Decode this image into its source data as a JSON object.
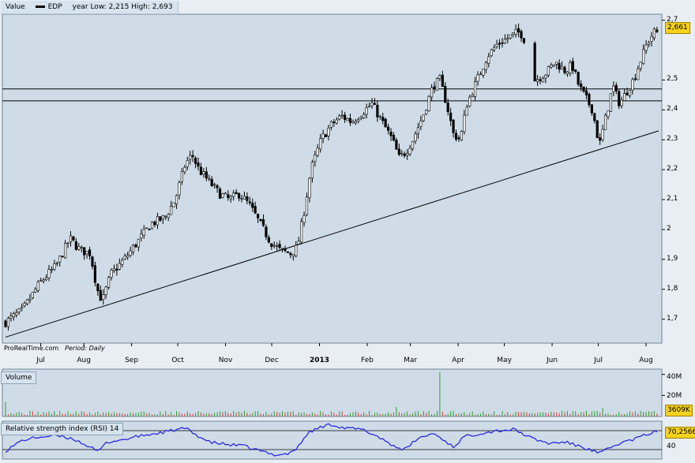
{
  "header": {
    "series_label": "Value",
    "symbol": "EDP",
    "range_text": "year Low: 2,215 High: 2,693"
  },
  "colors": {
    "plot_bg": "#cfdce8",
    "page_bg": "#e8eef4",
    "candle": "#000000",
    "rsi_line": "#2a2adf",
    "badge": "#f5d21c",
    "vol_up": "#2ba02b",
    "vol_down": "#d73b3b"
  },
  "watermark": {
    "brand": "ProRealTime.com",
    "period": "Period: Daily"
  },
  "volume_panel": {
    "label": "Volume",
    "ticks": [
      "40M",
      "20M"
    ],
    "last_value": "3609K"
  },
  "rsi_panel": {
    "label": "Relative strength index (RSI) 14",
    "ticks": [
      "40"
    ],
    "last_value": "70,2566"
  },
  "chart_data": [
    {
      "type": "candlestick",
      "title": "EDP",
      "x_ticks": [
        "Jul",
        "Aug",
        "Sep",
        "Oct",
        "Nov",
        "Dec",
        "2013",
        "Feb",
        "Mar",
        "Apr",
        "May",
        "Jun",
        "Jul",
        "Aug"
      ],
      "y_ticks": [
        "2,7",
        "2,5",
        "2,4",
        "2,3",
        "2,2",
        "2,1",
        "2",
        "1,9",
        "1,8",
        "1,7"
      ],
      "ylim": [
        1.62,
        2.72
      ],
      "last_value": "2,661",
      "price_path": [
        [
          0,
          1.69
        ],
        [
          10,
          1.73
        ],
        [
          20,
          1.82
        ],
        [
          30,
          1.88
        ],
        [
          38,
          1.97
        ],
        [
          44,
          1.93
        ],
        [
          50,
          1.92
        ],
        [
          54,
          1.8
        ],
        [
          57,
          1.76
        ],
        [
          62,
          1.85
        ],
        [
          70,
          1.9
        ],
        [
          78,
          1.96
        ],
        [
          86,
          2.02
        ],
        [
          94,
          2.04
        ],
        [
          100,
          2.1
        ],
        [
          106,
          2.22
        ],
        [
          110,
          2.25
        ],
        [
          114,
          2.2
        ],
        [
          120,
          2.16
        ],
        [
          126,
          2.12
        ],
        [
          132,
          2.1
        ],
        [
          138,
          2.12
        ],
        [
          144,
          2.08
        ],
        [
          150,
          2.02
        ],
        [
          156,
          1.96
        ],
        [
          162,
          1.93
        ],
        [
          168,
          1.92
        ],
        [
          172,
          1.94
        ],
        [
          176,
          2.06
        ],
        [
          180,
          2.2
        ],
        [
          186,
          2.3
        ],
        [
          192,
          2.35
        ],
        [
          198,
          2.38
        ],
        [
          204,
          2.36
        ],
        [
          210,
          2.39
        ],
        [
          216,
          2.42
        ],
        [
          222,
          2.36
        ],
        [
          228,
          2.3
        ],
        [
          232,
          2.24
        ],
        [
          236,
          2.26
        ],
        [
          240,
          2.3
        ],
        [
          246,
          2.38
        ],
        [
          252,
          2.48
        ],
        [
          256,
          2.5
        ],
        [
          260,
          2.42
        ],
        [
          264,
          2.32
        ],
        [
          268,
          2.3
        ],
        [
          272,
          2.42
        ],
        [
          278,
          2.5
        ],
        [
          284,
          2.58
        ],
        [
          290,
          2.62
        ],
        [
          296,
          2.64
        ],
        [
          302,
          2.66
        ],
        [
          305,
          2.65
        ],
        [
          312,
          2.5
        ],
        [
          318,
          2.52
        ],
        [
          324,
          2.56
        ],
        [
          330,
          2.53
        ],
        [
          334,
          2.55
        ],
        [
          338,
          2.48
        ],
        [
          342,
          2.44
        ],
        [
          346,
          2.4
        ],
        [
          350,
          2.28
        ],
        [
          354,
          2.38
        ],
        [
          358,
          2.48
        ],
        [
          362,
          2.42
        ],
        [
          366,
          2.46
        ],
        [
          370,
          2.5
        ],
        [
          374,
          2.56
        ],
        [
          378,
          2.62
        ],
        [
          382,
          2.66
        ],
        [
          385,
          2.66
        ]
      ],
      "gaps": [
        [
          306,
          311
        ]
      ],
      "horizontal_lines": [
        2.47,
        2.43
      ],
      "trendline": {
        "from": [
          0,
          1.64
        ],
        "to": [
          385,
          2.33
        ]
      }
    },
    {
      "type": "bar",
      "title": "Volume",
      "ylim": [
        0,
        45
      ],
      "unit": "M",
      "spikes": [
        {
          "t": 0,
          "v": 14
        },
        {
          "t": 230,
          "v": 9
        },
        {
          "t": 256,
          "v": 42
        },
        {
          "t": 352,
          "v": 8
        }
      ]
    },
    {
      "type": "line",
      "title": "Relative strength index (RSI) 14",
      "ylim": [
        25,
        85
      ],
      "reference_lines": [
        70,
        40
      ],
      "points": [
        [
          0,
          38
        ],
        [
          10,
          55
        ],
        [
          20,
          60
        ],
        [
          30,
          62
        ],
        [
          40,
          57
        ],
        [
          50,
          44
        ],
        [
          54,
          36
        ],
        [
          60,
          52
        ],
        [
          70,
          56
        ],
        [
          80,
          62
        ],
        [
          90,
          66
        ],
        [
          100,
          71
        ],
        [
          106,
          74
        ],
        [
          112,
          64
        ],
        [
          120,
          52
        ],
        [
          130,
          48
        ],
        [
          140,
          46
        ],
        [
          150,
          38
        ],
        [
          158,
          32
        ],
        [
          166,
          33
        ],
        [
          172,
          42
        ],
        [
          178,
          66
        ],
        [
          186,
          76
        ],
        [
          192,
          80
        ],
        [
          200,
          74
        ],
        [
          210,
          72
        ],
        [
          220,
          60
        ],
        [
          230,
          44
        ],
        [
          236,
          40
        ],
        [
          242,
          56
        ],
        [
          252,
          66
        ],
        [
          258,
          56
        ],
        [
          264,
          44
        ],
        [
          270,
          60
        ],
        [
          280,
          66
        ],
        [
          290,
          70
        ],
        [
          300,
          72
        ],
        [
          310,
          58
        ],
        [
          320,
          50
        ],
        [
          330,
          52
        ],
        [
          340,
          44
        ],
        [
          350,
          34
        ],
        [
          356,
          42
        ],
        [
          362,
          50
        ],
        [
          370,
          56
        ],
        [
          378,
          64
        ],
        [
          385,
          70
        ]
      ]
    }
  ]
}
